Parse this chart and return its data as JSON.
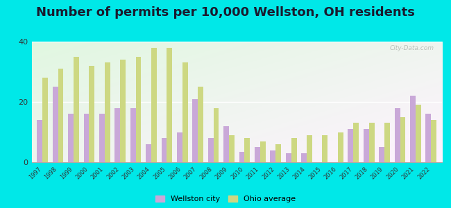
{
  "title": "Number of permits per 10,000 Wellston, OH residents",
  "years": [
    1997,
    1998,
    1999,
    2000,
    2001,
    2002,
    2003,
    2004,
    2005,
    2006,
    2007,
    2008,
    2009,
    2010,
    2011,
    2012,
    2013,
    2014,
    2015,
    2016,
    2017,
    2018,
    2019,
    2020,
    2021,
    2022
  ],
  "wellston": [
    14,
    25,
    16,
    16,
    16,
    18,
    18,
    6,
    8,
    10,
    21,
    8,
    12,
    3.5,
    5,
    4,
    3,
    3,
    0,
    0,
    11,
    11,
    5,
    18,
    22,
    16
  ],
  "ohio": [
    28,
    31,
    35,
    32,
    33,
    34,
    35,
    38,
    38,
    33,
    25,
    18,
    9,
    8,
    7,
    6,
    8,
    9,
    9,
    10,
    13,
    13,
    13,
    15,
    19,
    14
  ],
  "wellston_color": "#c9a8d8",
  "ohio_color": "#cdd882",
  "outer_background": "#00e8e8",
  "ylim": [
    0,
    40
  ],
  "yticks": [
    0,
    20,
    40
  ],
  "title_fontsize": 13,
  "legend_labels": [
    "Wellston city",
    "Ohio average"
  ],
  "watermark": "City-Data.com"
}
